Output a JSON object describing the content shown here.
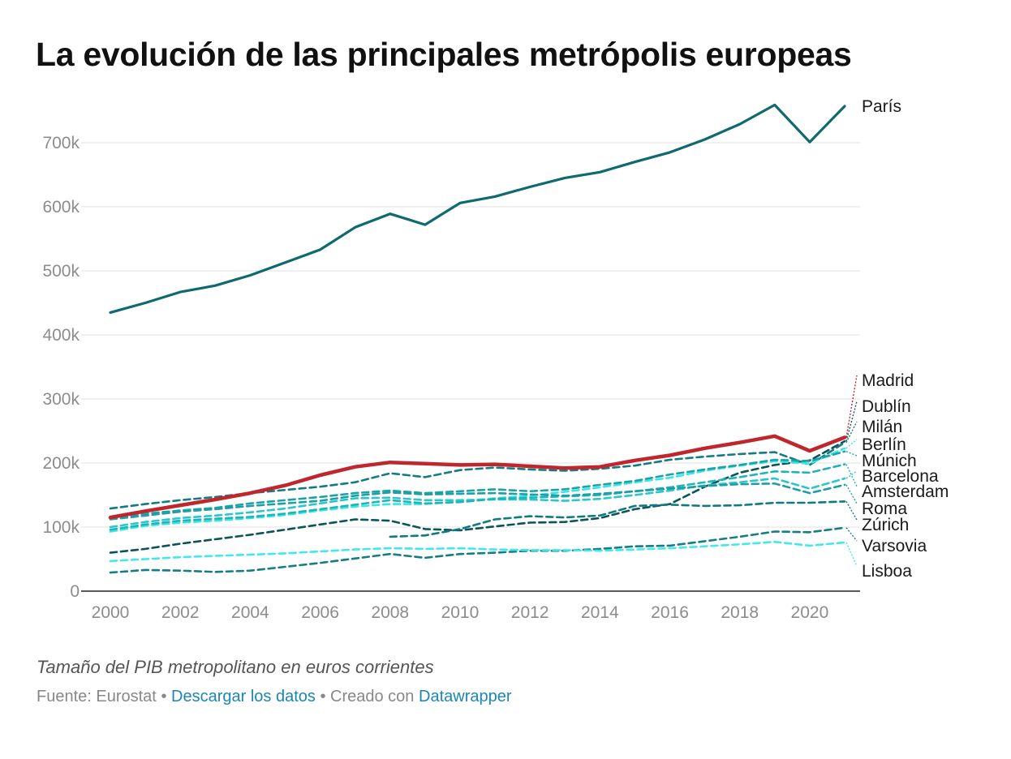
{
  "header": {
    "title": "La evolución de las principales metrópolis europeas"
  },
  "chart_data": {
    "type": "line",
    "title": "La evolución de las principales metrópolis europeas",
    "xlabel": "",
    "ylabel": "",
    "x_ticks": [
      "2000",
      "2002",
      "2004",
      "2006",
      "2008",
      "2010",
      "2012",
      "2014",
      "2016",
      "2018",
      "2020"
    ],
    "y_ticks": [
      "0",
      "100k",
      "200k",
      "300k",
      "400k",
      "500k",
      "600k",
      "700k"
    ],
    "ylim": [
      0,
      760000
    ],
    "xlim": [
      2000,
      2021
    ],
    "grid": "horizontal",
    "legend": "direct labels at right end of lines",
    "series": [
      {
        "name": "París",
        "color": "#0d6a6f",
        "style": "solid",
        "x": [
          2000,
          2001,
          2002,
          2003,
          2004,
          2005,
          2006,
          2007,
          2008,
          2009,
          2010,
          2011,
          2012,
          2013,
          2014,
          2015,
          2016,
          2017,
          2018,
          2019,
          2020,
          2021
        ],
        "values": [
          435000,
          450000,
          467000,
          477000,
          493000,
          513000,
          533000,
          568000,
          589000,
          572000,
          606000,
          616000,
          631000,
          645000,
          654000,
          670000,
          685000,
          705000,
          729000,
          759000,
          701000,
          757000
        ]
      },
      {
        "name": "Madrid",
        "color": "#c0272d",
        "style": "solid",
        "x": [
          2000,
          2001,
          2002,
          2003,
          2004,
          2005,
          2006,
          2007,
          2008,
          2009,
          2010,
          2011,
          2012,
          2013,
          2014,
          2015,
          2016,
          2017,
          2018,
          2019,
          2020,
          2021
        ],
        "values": [
          115000,
          125000,
          134000,
          143000,
          153000,
          165000,
          181000,
          194000,
          201000,
          199000,
          197000,
          198000,
          195000,
          192000,
          194000,
          204000,
          212000,
          223000,
          232000,
          242000,
          219000,
          240000
        ]
      },
      {
        "name": "Dublín",
        "color": "#0b5458",
        "style": "dashed",
        "x": [
          2000,
          2001,
          2002,
          2003,
          2004,
          2005,
          2006,
          2007,
          2008,
          2009,
          2010,
          2011,
          2012,
          2013,
          2014,
          2015,
          2016,
          2017,
          2018,
          2019,
          2020,
          2021
        ],
        "values": [
          60000,
          66000,
          74000,
          81000,
          88000,
          96000,
          104000,
          112000,
          110000,
          97000,
          95000,
          101000,
          107000,
          108000,
          114000,
          128000,
          136000,
          163000,
          185000,
          197000,
          204000,
          234000
        ]
      },
      {
        "name": "Milán",
        "color": "#137b85",
        "style": "dashed",
        "x": [
          2000,
          2001,
          2002,
          2003,
          2004,
          2005,
          2006,
          2007,
          2008,
          2009,
          2010,
          2011,
          2012,
          2013,
          2014,
          2015,
          2016,
          2017,
          2018,
          2019,
          2020,
          2021
        ],
        "values": [
          129000,
          136000,
          142000,
          147000,
          153000,
          158000,
          163000,
          170000,
          184000,
          178000,
          189000,
          193000,
          190000,
          188000,
          191000,
          196000,
          205000,
          210000,
          214000,
          217000,
          197000,
          232000
        ]
      },
      {
        "name": "Berlín",
        "color": "#35e6e6",
        "style": "dashed",
        "x": [
          2000,
          2001,
          2002,
          2003,
          2004,
          2005,
          2006,
          2007,
          2008,
          2009,
          2010,
          2011,
          2012,
          2013,
          2014,
          2015,
          2016,
          2017,
          2018,
          2019,
          2020,
          2021
        ],
        "values": [
          93000,
          102000,
          107000,
          110000,
          114000,
          119000,
          126000,
          132000,
          136000,
          136000,
          140000,
          145000,
          149000,
          155000,
          162000,
          170000,
          177000,
          188000,
          196000,
          203000,
          199000,
          223000
        ]
      },
      {
        "name": "Múnich",
        "color": "#1aa3a8",
        "style": "dashed",
        "x": [
          2000,
          2001,
          2002,
          2003,
          2004,
          2005,
          2006,
          2007,
          2008,
          2009,
          2010,
          2011,
          2012,
          2013,
          2014,
          2015,
          2016,
          2017,
          2018,
          2019,
          2020,
          2021
        ],
        "values": [
          113000,
          121000,
          126000,
          130000,
          137000,
          142000,
          147000,
          153000,
          157000,
          153000,
          156000,
          159000,
          156000,
          159000,
          166000,
          172000,
          182000,
          190000,
          197000,
          205000,
          203000,
          218000
        ]
      },
      {
        "name": "Barcelona",
        "color": "#2bc6cc",
        "style": "dashed",
        "x": [
          2000,
          2001,
          2002,
          2003,
          2004,
          2005,
          2006,
          2007,
          2008,
          2009,
          2010,
          2011,
          2012,
          2013,
          2014,
          2015,
          2016,
          2017,
          2018,
          2019,
          2020,
          2021
        ],
        "values": [
          100000,
          108000,
          114000,
          118000,
          123000,
          129000,
          137000,
          145000,
          146000,
          142000,
          142000,
          143000,
          143000,
          141000,
          144000,
          150000,
          157000,
          165000,
          170000,
          176000,
          160000,
          176000
        ]
      },
      {
        "name": "Amsterdam",
        "color": "#20b4b8",
        "style": "dashed",
        "x": [
          2000,
          2001,
          2002,
          2003,
          2004,
          2005,
          2006,
          2007,
          2008,
          2009,
          2010,
          2011,
          2012,
          2013,
          2014,
          2015,
          2016,
          2017,
          2018,
          2019,
          2020,
          2021
        ],
        "values": [
          96000,
          104000,
          110000,
          113000,
          116000,
          121000,
          128000,
          135000,
          142000,
          137000,
          139000,
          144000,
          146000,
          148000,
          150000,
          156000,
          162000,
          170000,
          178000,
          187000,
          185000,
          198000
        ]
      },
      {
        "name": "Roma",
        "color": "#1f9ea3",
        "style": "dashed",
        "x": [
          2000,
          2001,
          2002,
          2003,
          2004,
          2005,
          2006,
          2007,
          2008,
          2009,
          2010,
          2011,
          2012,
          2013,
          2014,
          2015,
          2016,
          2017,
          2018,
          2019,
          2020,
          2021
        ],
        "values": [
          112000,
          118000,
          124000,
          128000,
          133000,
          137000,
          141000,
          149000,
          154000,
          151000,
          152000,
          153000,
          151000,
          149000,
          152000,
          156000,
          160000,
          164000,
          167000,
          168000,
          153000,
          166000
        ]
      },
      {
        "name": "Zúrich",
        "color": "#117a80",
        "style": "dashed",
        "x": [
          2008,
          2009,
          2010,
          2011,
          2012,
          2013,
          2014,
          2015,
          2016,
          2017,
          2018,
          2019,
          2020,
          2021
        ],
        "values": [
          85000,
          87000,
          97000,
          112000,
          117000,
          115000,
          118000,
          133000,
          135000,
          133000,
          134000,
          138000,
          138000,
          140000
        ]
      },
      {
        "name": "Varsovia",
        "color": "#157e80",
        "style": "dashed",
        "x": [
          2000,
          2001,
          2002,
          2003,
          2004,
          2005,
          2006,
          2007,
          2008,
          2009,
          2010,
          2011,
          2012,
          2013,
          2014,
          2015,
          2016,
          2017,
          2018,
          2019,
          2020,
          2021
        ],
        "values": [
          29000,
          33000,
          32000,
          30000,
          32000,
          38000,
          44000,
          51000,
          58000,
          52000,
          58000,
          60000,
          63000,
          63000,
          66000,
          70000,
          71000,
          78000,
          85000,
          93000,
          92000,
          99000
        ]
      },
      {
        "name": "Lisboa",
        "color": "#42e8ee",
        "style": "dashed",
        "x": [
          2000,
          2001,
          2002,
          2003,
          2004,
          2005,
          2006,
          2007,
          2008,
          2009,
          2010,
          2011,
          2012,
          2013,
          2014,
          2015,
          2016,
          2017,
          2018,
          2019,
          2020,
          2021
        ],
        "values": [
          47000,
          50000,
          53000,
          55000,
          57000,
          59000,
          62000,
          65000,
          67000,
          66000,
          67000,
          65000,
          64000,
          64000,
          63000,
          65000,
          67000,
          70000,
          73000,
          77000,
          71000,
          76000
        ]
      }
    ],
    "annotations": [
      "París",
      "Madrid",
      "Dublín",
      "Milán",
      "Berlín",
      "Múnich",
      "Barcelona",
      "Amsterdam",
      "Roma",
      "Zúrich",
      "Varsovia",
      "Lisboa"
    ]
  },
  "notes": "Tamaño del PIB metropolitano en euros corrientes",
  "footer": {
    "source": "Fuente: Eurostat",
    "separator": "•",
    "download_link": "Descargar los datos",
    "created_with": "Creado con",
    "tool_link": "Datawrapper"
  }
}
